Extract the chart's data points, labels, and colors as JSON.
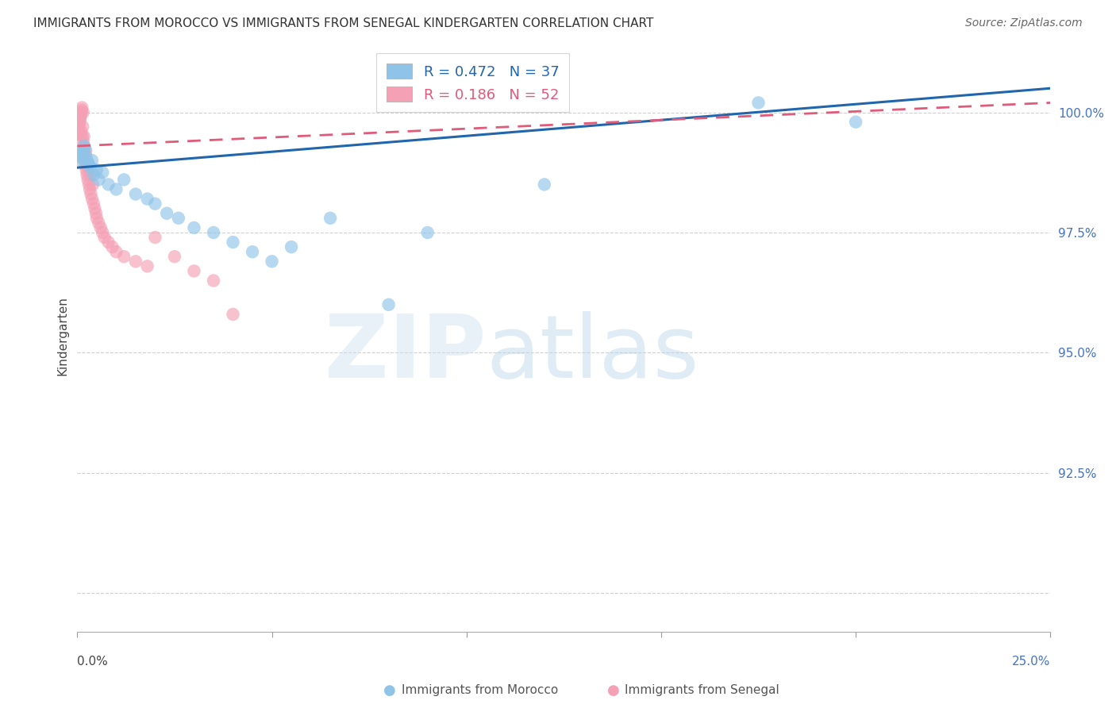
{
  "title": "IMMIGRANTS FROM MOROCCO VS IMMIGRANTS FROM SENEGAL KINDERGARTEN CORRELATION CHART",
  "source": "Source: ZipAtlas.com",
  "ylabel": "Kindergarten",
  "xlim": [
    0.0,
    25.0
  ],
  "ylim": [
    89.2,
    101.5
  ],
  "ytick_positions": [
    90.0,
    92.5,
    95.0,
    97.5,
    100.0
  ],
  "ytick_labels": [
    "",
    "92.5%",
    "95.0%",
    "97.5%",
    "100.0%"
  ],
  "morocco_R": 0.472,
  "morocco_N": 37,
  "senegal_R": 0.186,
  "senegal_N": 52,
  "morocco_color": "#8fc4e8",
  "senegal_color": "#f4a0b5",
  "morocco_line_color": "#2166ac",
  "senegal_line_color": "#e05a7a",
  "morocco_x": [
    0.05,
    0.08,
    0.1,
    0.12,
    0.15,
    0.18,
    0.2,
    0.22,
    0.25,
    0.28,
    0.3,
    0.35,
    0.38,
    0.42,
    0.5,
    0.55,
    0.65,
    0.8,
    1.0,
    1.2,
    1.5,
    1.8,
    2.0,
    2.3,
    2.6,
    3.0,
    3.5,
    4.0,
    4.5,
    5.0,
    5.5,
    6.5,
    8.0,
    9.0,
    12.0,
    17.5,
    20.0
  ],
  "morocco_y": [
    99.1,
    99.0,
    99.15,
    99.05,
    99.2,
    99.3,
    99.25,
    99.1,
    99.0,
    98.95,
    98.9,
    98.85,
    99.0,
    98.7,
    98.8,
    98.6,
    98.75,
    98.5,
    98.4,
    98.6,
    98.3,
    98.2,
    98.1,
    97.9,
    97.8,
    97.6,
    97.5,
    97.3,
    97.1,
    96.9,
    97.2,
    97.8,
    96.0,
    97.5,
    98.5,
    100.2,
    99.8
  ],
  "senegal_x": [
    0.02,
    0.03,
    0.04,
    0.05,
    0.06,
    0.07,
    0.08,
    0.09,
    0.1,
    0.1,
    0.11,
    0.12,
    0.13,
    0.14,
    0.15,
    0.15,
    0.16,
    0.17,
    0.18,
    0.19,
    0.2,
    0.21,
    0.22,
    0.23,
    0.25,
    0.27,
    0.28,
    0.3,
    0.32,
    0.33,
    0.35,
    0.38,
    0.4,
    0.42,
    0.45,
    0.48,
    0.5,
    0.55,
    0.6,
    0.65,
    0.7,
    0.8,
    0.9,
    1.0,
    1.2,
    1.5,
    1.8,
    2.0,
    2.5,
    3.0,
    3.5,
    4.0
  ],
  "senegal_y": [
    99.55,
    99.65,
    99.7,
    99.75,
    99.8,
    99.85,
    99.9,
    99.95,
    100.0,
    99.6,
    100.05,
    100.1,
    99.5,
    99.7,
    99.4,
    100.0,
    99.3,
    99.5,
    99.2,
    99.0,
    99.1,
    98.9,
    99.2,
    98.8,
    98.7,
    98.6,
    98.85,
    98.5,
    98.4,
    98.7,
    98.3,
    98.2,
    98.5,
    98.1,
    98.0,
    97.9,
    97.8,
    97.7,
    97.6,
    97.5,
    97.4,
    97.3,
    97.2,
    97.1,
    97.0,
    96.9,
    96.8,
    97.4,
    97.0,
    96.7,
    96.5,
    95.8
  ],
  "morocco_line_x0": 0.0,
  "morocco_line_y0": 98.85,
  "morocco_line_x1": 25.0,
  "morocco_line_y1": 100.5,
  "senegal_line_x0": 0.0,
  "senegal_line_y0": 99.3,
  "senegal_line_x1": 25.0,
  "senegal_line_y1": 100.2
}
